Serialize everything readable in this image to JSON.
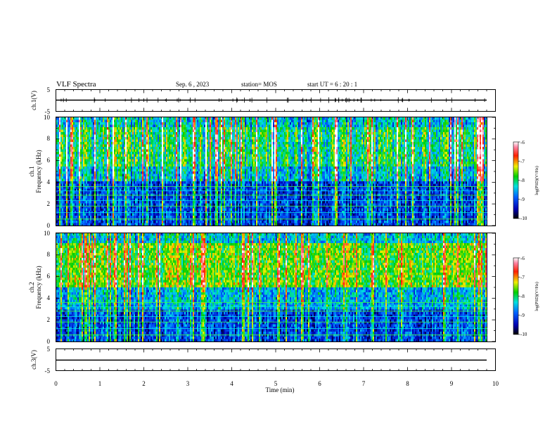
{
  "header": {
    "title": "VLF Spectra",
    "date": "Sep. 6  , 2023",
    "station": "station= MOS",
    "start_time": "start  UT  =   6  : 20 : 1"
  },
  "chart_data": [
    {
      "type": "line",
      "name": "ch.1 waveform",
      "ylabel": "ch.1(V)",
      "ylim": [
        -5,
        5
      ],
      "yticks": [
        "5",
        "-5"
      ],
      "baseline": 0
    },
    {
      "type": "heatmap",
      "name": "ch.1 spectrogram",
      "ylabel_line1": "ch.1",
      "ylabel_line2": "Frequency  (kHz)",
      "ylim": [
        0,
        10
      ],
      "yticks": [
        "0",
        "2",
        "4",
        "6",
        "8",
        "10"
      ],
      "colorbar": {
        "label": "log(PSD)(V²/Hz)",
        "ticks": [
          "-6",
          "-7",
          "-8",
          "-9",
          "-10"
        ],
        "range": [
          -10,
          -6
        ]
      }
    },
    {
      "type": "heatmap",
      "name": "ch.2 spectrogram",
      "ylabel_line1": "ch.2",
      "ylabel_line2": "Frequency  (kHz)",
      "ylim": [
        0,
        10
      ],
      "yticks": [
        "0",
        "2",
        "4",
        "6",
        "8",
        "10"
      ],
      "colorbar": {
        "label": "log(PSD)(V²/Hz)",
        "ticks": [
          "-6",
          "-7",
          "-8",
          "-9",
          "-10"
        ],
        "range": [
          -10,
          -6
        ]
      }
    },
    {
      "type": "line",
      "name": "ch.3 waveform",
      "ylabel": "ch.3(V)",
      "ylim": [
        -5,
        5
      ],
      "yticks": [
        "5",
        "-5"
      ],
      "baseline": 0
    }
  ],
  "xaxis": {
    "label": "Time  (min)",
    "xlim": [
      0,
      10
    ],
    "ticks": [
      "0",
      "1",
      "2",
      "3",
      "4",
      "5",
      "6",
      "7",
      "8",
      "9",
      "10"
    ],
    "data_end": 9.83
  }
}
